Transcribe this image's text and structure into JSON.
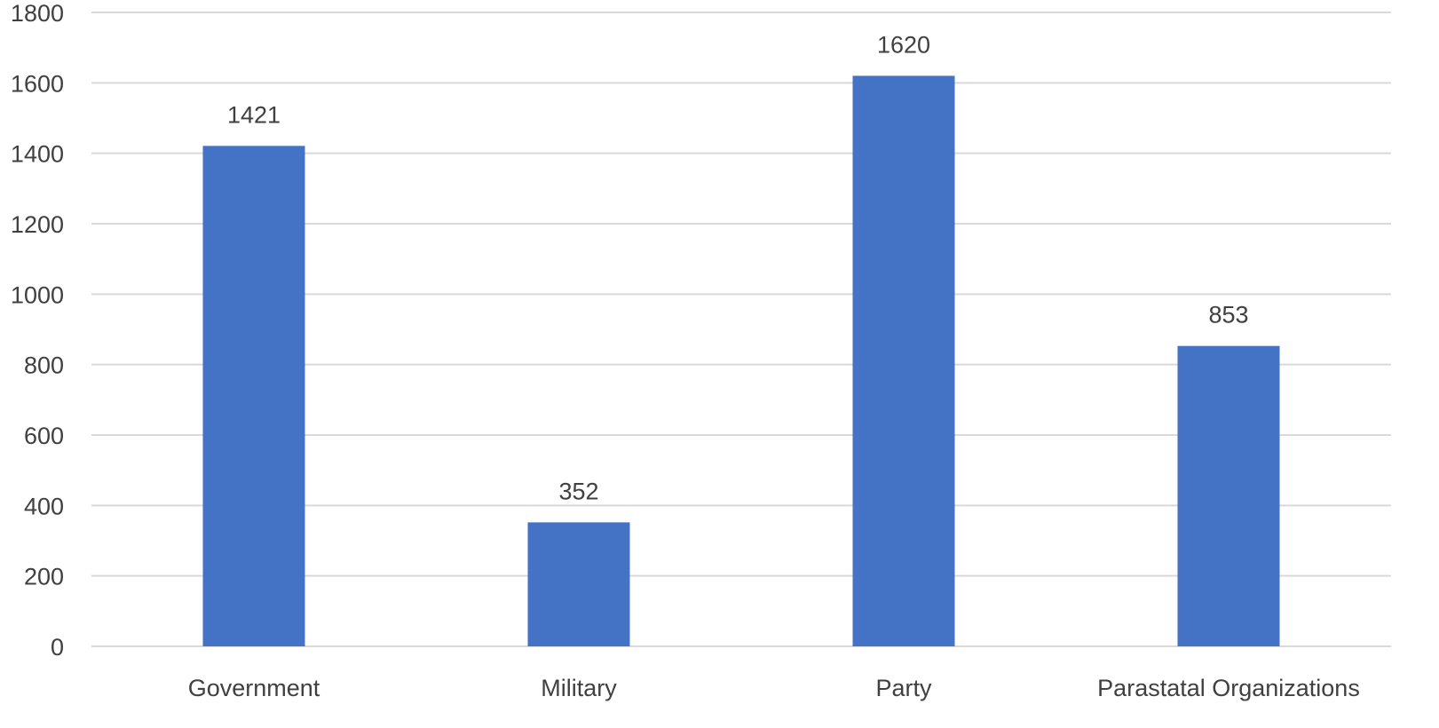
{
  "chart_data": {
    "type": "bar",
    "categories": [
      "Government",
      "Military",
      "Party",
      "Parastatal Organizations"
    ],
    "values": [
      1421,
      352,
      1620,
      853
    ],
    "data_labels": [
      "1421",
      "352",
      "1620",
      "853"
    ],
    "ylim": [
      0,
      1800
    ],
    "yticks": [
      0,
      200,
      400,
      600,
      800,
      1000,
      1200,
      1400,
      1600,
      1800
    ],
    "title": "",
    "xlabel": "",
    "ylabel": "",
    "grid": true,
    "legend": "none",
    "bar_color": "#4472c4"
  }
}
